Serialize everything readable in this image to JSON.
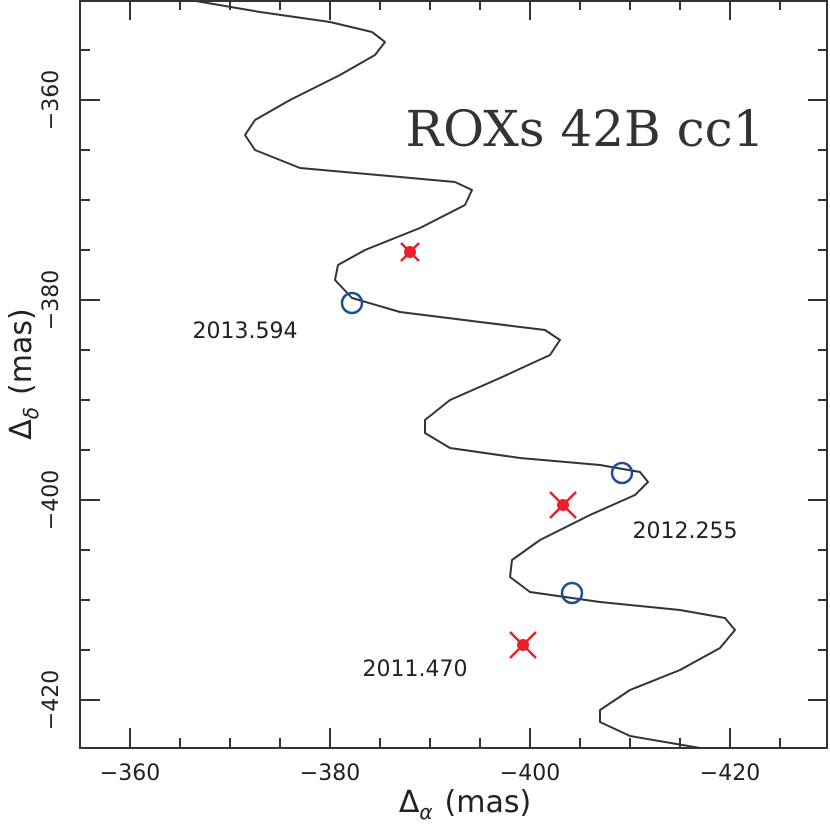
{
  "chart_data": {
    "type": "line",
    "title": "ROXs 42B cc1",
    "xlabel": {
      "symbol": "Δ",
      "subscript": "α",
      "unit": "(mas)"
    },
    "ylabel": {
      "symbol": "Δ",
      "subscript": "δ",
      "unit": "(mas)"
    },
    "xlim": [
      -355,
      -429.8
    ],
    "ylim": [
      -350,
      -424.8
    ],
    "xticks": [
      {
        "value": -360,
        "label": "−360"
      },
      {
        "value": -380,
        "label": "−380"
      },
      {
        "value": -400,
        "label": "−400"
      },
      {
        "value": -420,
        "label": "−420"
      }
    ],
    "yticks": [
      {
        "value": -360,
        "label": "−360"
      },
      {
        "value": -380,
        "label": "−380"
      },
      {
        "value": -400,
        "label": "−400"
      },
      {
        "value": -420,
        "label": "−420"
      }
    ],
    "xticks_minor": [
      -355,
      -365,
      -370,
      -375,
      -385,
      -390,
      -395,
      -405,
      -410,
      -415,
      -425
    ],
    "yticks_minor": [
      -355,
      -365,
      -370,
      -375,
      -385,
      -390,
      -395,
      -405,
      -410,
      -415
    ],
    "series": [
      {
        "style": "line",
        "color": "#333333",
        "x": [
          -366,
          -373,
          -380,
          -384.2,
          -385.5,
          -384.5,
          -381,
          -376,
          -372.5,
          -371.5,
          -372.5,
          -377,
          -387,
          -392.5,
          -394.2,
          -393.5,
          -389,
          -383.5,
          -380.8,
          -380.5,
          -382.2,
          -387,
          -395,
          -401.5,
          -403,
          -402,
          -397,
          -392,
          -389.5,
          -389.5,
          -392,
          -399,
          -407,
          -411,
          -411.8,
          -410.5,
          -406,
          -401,
          -398.2,
          -398,
          -400,
          -407,
          -415,
          -419.5,
          -420.5,
          -419,
          -415,
          -410,
          -407,
          -407,
          -410,
          -417
        ],
        "values": [
          -350,
          -351.2,
          -352.2,
          -353.2,
          -354.2,
          -355.5,
          -357.5,
          -360,
          -362,
          -363.5,
          -365,
          -366.8,
          -367.7,
          -368.2,
          -369,
          -370.5,
          -372.8,
          -375,
          -376.5,
          -378,
          -379.8,
          -381.2,
          -382.2,
          -383,
          -384,
          -385.5,
          -387.8,
          -390,
          -392,
          -393.3,
          -394.8,
          -395.8,
          -396.5,
          -397.2,
          -398.2,
          -399.5,
          -401.5,
          -404,
          -406,
          -407.7,
          -409.2,
          -410.2,
          -411,
          -411.8,
          -413,
          -414.8,
          -417,
          -419,
          -421,
          -422.2,
          -423.6,
          -424.8
        ]
      },
      {
        "style": "open-circle",
        "color": "#1d4f96",
        "x": [
          -382.2,
          -409.2,
          -404.2
        ],
        "values": [
          -380.3,
          -397.3,
          -409.3
        ]
      },
      {
        "style": "filled-x",
        "color": "#e8202a",
        "x": [
          -388,
          -403.3,
          -399.3
        ],
        "values": [
          -375.2,
          -400.5,
          -414.5
        ]
      }
    ],
    "annotations": [
      "2013.594",
      "2012.255",
      "2011.470"
    ]
  }
}
